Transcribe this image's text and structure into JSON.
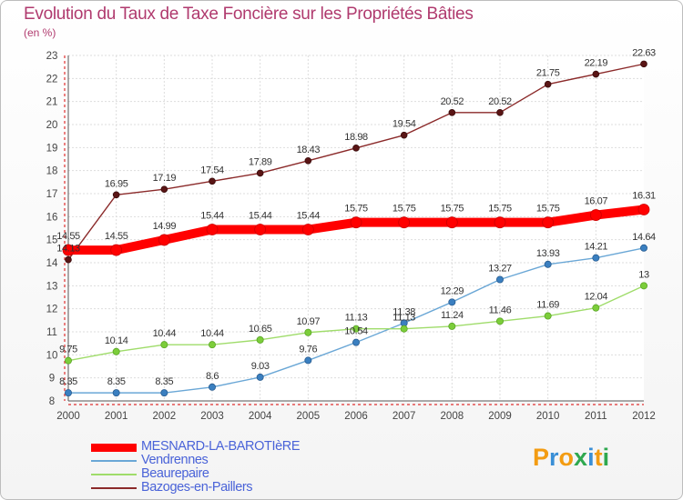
{
  "title": "Evolution du Taux de Taxe Foncière sur les Propriétés Bâties",
  "subtitle": "(en %)",
  "logo": {
    "text": "Proxiti",
    "letters": [
      "P",
      "r",
      "o",
      "x",
      "i",
      "t",
      "i"
    ],
    "colors": [
      "#f39c12",
      "#3a8fd6",
      "#f39c12",
      "#2fa84f",
      "#3a8fd6",
      "#f39c12",
      "#2fa84f"
    ]
  },
  "chart_data": {
    "type": "line",
    "x": [
      "2000",
      "2001",
      "2002",
      "2003",
      "2004",
      "2005",
      "2006",
      "2007",
      "2008",
      "2009",
      "2010",
      "2011",
      "2012"
    ],
    "ylim": [
      8,
      23
    ],
    "yticks": [
      "8",
      "9",
      "10",
      "11",
      "12",
      "13",
      "14",
      "15",
      "16",
      "17",
      "18",
      "19",
      "20",
      "21",
      "22",
      "23"
    ],
    "grid": true,
    "legend": "bottom-left",
    "series": [
      {
        "name": "MESNARD-LA-BAROTIèRE",
        "color": "#ff0000",
        "values": [
          14.55,
          14.55,
          14.99,
          15.44,
          15.44,
          15.44,
          15.75,
          15.75,
          15.75,
          15.75,
          15.75,
          16.07,
          16.31
        ],
        "labels": [
          "14.55",
          "14.55",
          "14.99",
          "15.44",
          "15.44",
          "15.44",
          "15.75",
          "15.75",
          "15.75",
          "15.75",
          "15.75",
          "16.07",
          "16.31"
        ]
      },
      {
        "name": "Vendrennes",
        "color": "#6aa7d6",
        "values": [
          8.35,
          8.35,
          8.35,
          8.6,
          9.03,
          9.76,
          10.54,
          11.38,
          12.29,
          13.27,
          13.93,
          14.21,
          14.64
        ],
        "labels": [
          "8.35",
          "8.35",
          "8.35",
          "8.6",
          "9.03",
          "9.76",
          "10.54",
          "11.38",
          "12.29",
          "13.27",
          "13.93",
          "14.21",
          "14.64"
        ]
      },
      {
        "name": "Beaurepaire",
        "color": "#9fdc6a",
        "values": [
          9.75,
          10.14,
          10.44,
          10.44,
          10.65,
          10.97,
          11.13,
          11.13,
          11.24,
          11.46,
          11.69,
          12.04,
          13
        ],
        "labels": [
          "9.75",
          "10.14",
          "10.44",
          "10.44",
          "10.65",
          "10.97",
          "11.13",
          "11.13",
          "11.24",
          "11.46",
          "11.69",
          "12.04",
          "13"
        ]
      },
      {
        "name": "Bazoges-en-Paillers",
        "color": "#8b2a2a",
        "values": [
          14.13,
          16.95,
          17.19,
          17.54,
          17.89,
          18.43,
          18.98,
          19.54,
          20.52,
          20.52,
          21.75,
          22.19,
          22.63
        ],
        "labels": [
          "14.13",
          "16.95",
          "17.19",
          "17.54",
          "17.89",
          "18.43",
          "18.98",
          "19.54",
          "20.52",
          "20.52",
          "21.75",
          "22.19",
          "22.63"
        ]
      }
    ]
  }
}
